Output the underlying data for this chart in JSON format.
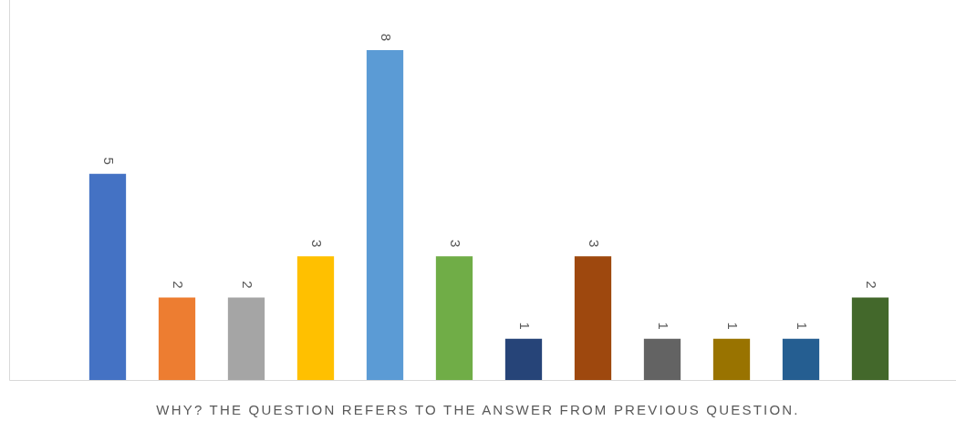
{
  "chart_data": {
    "type": "bar",
    "xlabel": "WHY? THE QUESTION REFERS TO THE ANSWER FROM PREVIOUS QUESTION.",
    "categories": [
      null,
      null,
      null,
      null,
      null,
      null,
      null,
      null,
      null,
      null,
      null,
      null
    ],
    "values": [
      5,
      2,
      2,
      3,
      8,
      3,
      1,
      3,
      1,
      1,
      1,
      2
    ],
    "colors": [
      "#4472c4",
      "#ed7d31",
      "#a5a5a5",
      "#ffc000",
      "#5b9bd5",
      "#70ad47",
      "#264478",
      "#9e480e",
      "#636363",
      "#997300",
      "#255e91",
      "#43682b"
    ],
    "data_labels": true,
    "grid": false,
    "legend": false
  }
}
